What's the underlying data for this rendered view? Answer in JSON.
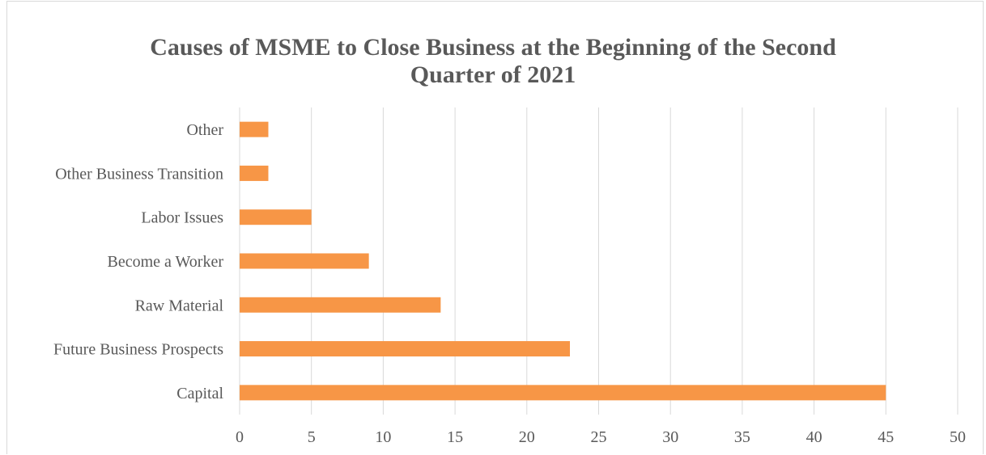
{
  "chart_data": {
    "type": "bar",
    "orientation": "horizontal",
    "title": "Causes of MSME to Close Business at the Beginning of the Second Quarter of 2021",
    "title_lines": [
      "Causes of MSME to Close Business at the Beginning of the Second",
      "Quarter of 2021"
    ],
    "categories": [
      "Other",
      "Other Business Transition",
      "Labor Issues",
      "Become a Worker",
      "Raw Material",
      "Future Business Prospects",
      "Capital"
    ],
    "values": [
      2,
      2,
      5,
      9,
      14,
      23,
      45
    ],
    "xlim": [
      0,
      50
    ],
    "xticks": [
      0,
      5,
      10,
      15,
      20,
      25,
      30,
      35,
      40,
      45,
      50
    ],
    "xlabel": "",
    "ylabel": "",
    "grid": "vertical",
    "legend": "none",
    "bar_color": "#f79646",
    "grid_color": "#d9d9d9",
    "text_color": "#595959"
  }
}
